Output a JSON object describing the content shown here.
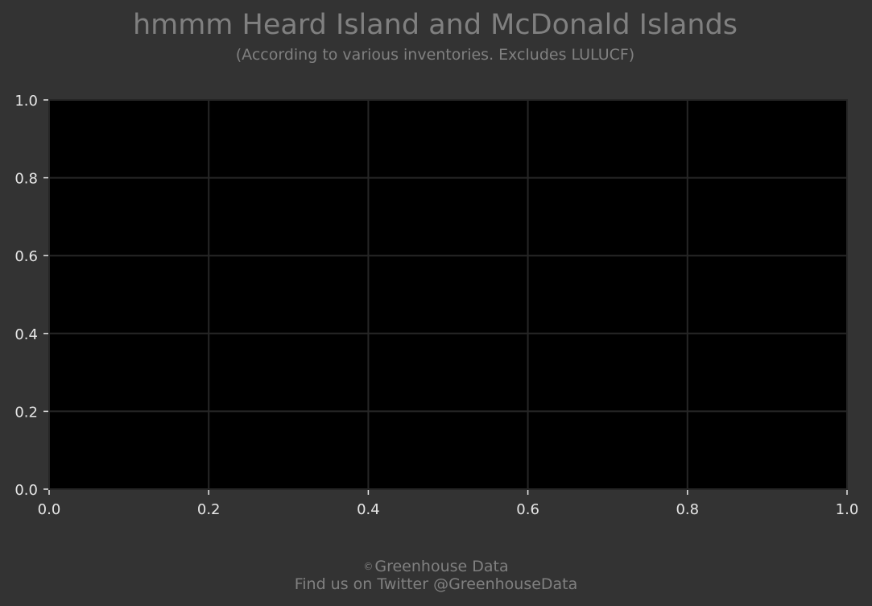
{
  "title": "hmmm Heard Island and McDonald Islands",
  "subtitle": "(According to various inventories. Excludes LULUCF)",
  "footer": {
    "copyright_symbol": "©",
    "line1": "Greenhouse Data",
    "line2": "Find us on Twitter @GreenhouseData"
  },
  "colors": {
    "page_background": "#333333",
    "plot_background": "#000000",
    "grid": "#262626",
    "text_muted": "#808080",
    "tick_text": "#e6e6e6"
  },
  "chart_data": {
    "type": "line",
    "title": "hmmm Heard Island and McDonald Islands",
    "subtitle": "(According to various inventories. Excludes LULUCF)",
    "xlabel": "",
    "ylabel": "",
    "xlim": [
      0.0,
      1.0
    ],
    "ylim": [
      0.0,
      1.0
    ],
    "x_ticks": [
      "0.0",
      "0.2",
      "0.4",
      "0.6",
      "0.8",
      "1.0"
    ],
    "y_ticks": [
      "0.0",
      "0.2",
      "0.4",
      "0.6",
      "0.8",
      "1.0"
    ],
    "grid": true,
    "series": []
  }
}
